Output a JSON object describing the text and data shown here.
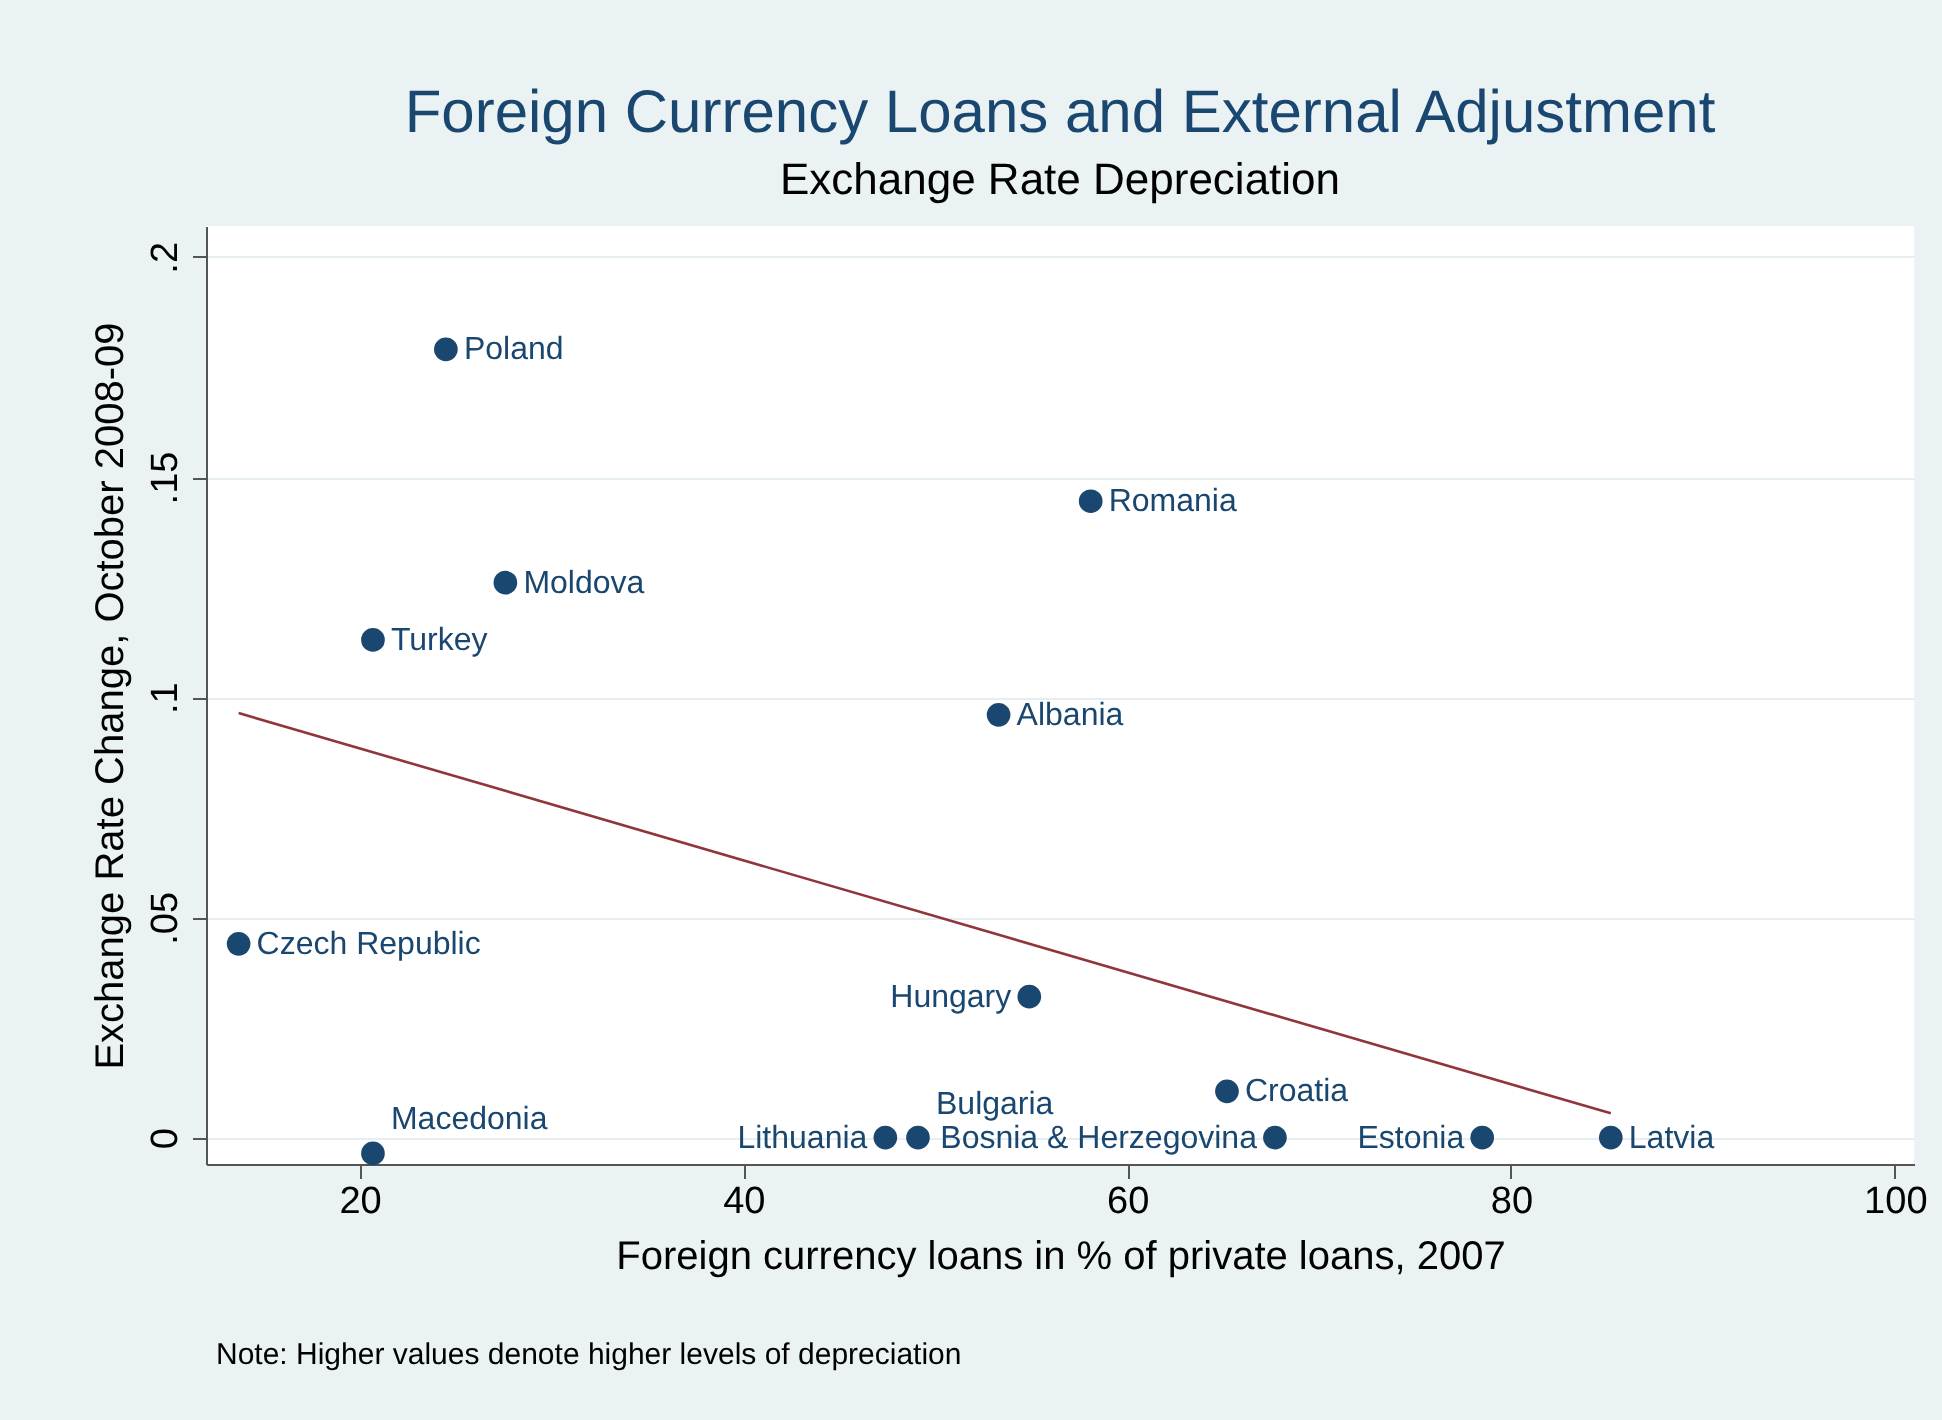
{
  "chart_data": {
    "type": "scatter",
    "title": "Foreign Currency Loans and External Adjustment",
    "subtitle": "Exchange Rate Depreciation",
    "xlabel": "Foreign currency loans in % of private loans, 2007",
    "ylabel": "Exchange Rate Change, October 2008-09",
    "xlim": [
      12,
      101
    ],
    "xticks": [
      20,
      40,
      60,
      80,
      100
    ],
    "ylim": [
      -0.006,
      0.207
    ],
    "yticks": [
      {
        "value": 0,
        "label": "0"
      },
      {
        "value": 0.05,
        "label": ".05"
      },
      {
        "value": 0.1,
        "label": ".1"
      },
      {
        "value": 0.15,
        "label": ".15"
      },
      {
        "value": 0.2,
        "label": ".2"
      }
    ],
    "grid": "y",
    "series": [
      {
        "type": "scatter",
        "marker": "circle",
        "color": "#1a476f",
        "x": [
          24.5,
          58.1,
          27.6,
          20.7,
          53.3,
          13.7,
          54.9,
          65.2,
          20.7,
          47.4,
          49.1,
          67.7,
          78.5,
          85.2
        ],
        "values": [
          0.179,
          0.1445,
          0.126,
          0.113,
          0.096,
          0.044,
          0.032,
          0.0105,
          -0.0036,
          0,
          0,
          0,
          0,
          0
        ]
      },
      {
        "type": "line",
        "marker": "none",
        "color": "#90353b",
        "x": [
          13.7,
          85.2
        ],
        "values": [
          0.0964,
          0.0055
        ]
      }
    ],
    "annotations": [
      {
        "text": "Poland",
        "x": 24.5,
        "y": 0.179
      },
      {
        "text": "Romania",
        "x": 58.1,
        "y": 0.1445
      },
      {
        "text": "Moldova",
        "x": 27.6,
        "y": 0.126
      },
      {
        "text": "Turkey",
        "x": 20.7,
        "y": 0.113
      },
      {
        "text": "Albania",
        "x": 53.3,
        "y": 0.096
      },
      {
        "text": "Czech Republic",
        "x": 13.7,
        "y": 0.044
      },
      {
        "text": "Hungary",
        "x": 54.9,
        "y": 0.032
      },
      {
        "text": "Croatia",
        "x": 65.2,
        "y": 0.0105
      },
      {
        "text": "Macedonia",
        "x": 20.7,
        "y": -0.0036
      },
      {
        "text": "Lithuania",
        "x": 47.4,
        "y": 0
      },
      {
        "text": "Bulgaria",
        "x": 49.1,
        "y": 0
      },
      {
        "text": "Bosnia & Herzegovina",
        "x": 67.7,
        "y": 0
      },
      {
        "text": "Estonia",
        "x": 78.5,
        "y": 0
      },
      {
        "text": "Latvia",
        "x": 85.2,
        "y": 0
      },
      "Note: Higher values denote higher levels of depreciation"
    ]
  }
}
